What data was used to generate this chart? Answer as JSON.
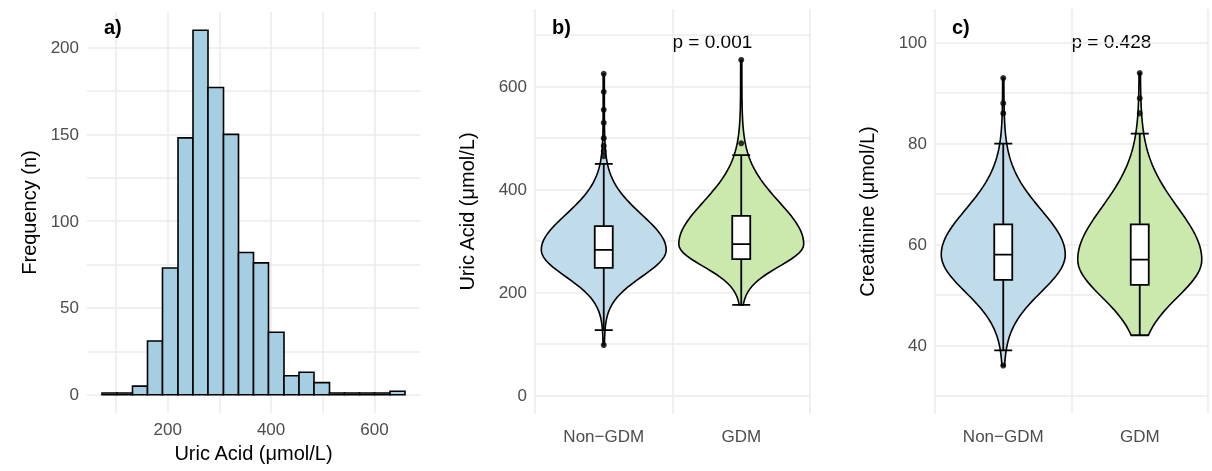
{
  "chart_data": [
    {
      "type": "histogram",
      "title": "a)",
      "xlabel": "Uric Acid (μmol/L)",
      "ylabel": "Frequency (n)",
      "color": "#a6cee3",
      "bins": [
        73,
        102,
        132,
        161,
        190,
        220,
        249,
        278,
        308,
        337,
        366,
        395,
        425,
        454,
        483,
        513,
        542,
        571,
        600,
        630,
        659
      ],
      "values": [
        1,
        1,
        5,
        31,
        73,
        148,
        210,
        177,
        150,
        82,
        76,
        36,
        11,
        13,
        7,
        1,
        1,
        1,
        1,
        2
      ],
      "xlim": [
        44,
        688
      ],
      "xticks": [
        {
          "value": 100,
          "label": null
        },
        200,
        {
          "value": 300,
          "label": null
        },
        400,
        {
          "value": 500,
          "label": null
        },
        600
      ],
      "ylim": [
        -10.5,
        220.5
      ],
      "yticks": [
        0,
        {
          "value": 25,
          "label": null
        },
        50,
        {
          "value": 75,
          "label": null
        },
        100,
        {
          "value": 125,
          "label": null
        },
        150,
        {
          "value": 175,
          "label": null
        },
        200
      ],
      "grid": true
    },
    {
      "type": "box",
      "title": "b)",
      "ylabel": "Uric Acid (μmol/L)",
      "categories": [
        "Non−GDM",
        "GDM"
      ],
      "marker": "circle",
      "boxes": [
        {
          "low": 127,
          "q1": 248,
          "median": 283,
          "q3": 329,
          "high": 450,
          "outliers": [
            98,
            465,
            475,
            485,
            500,
            530,
            555,
            590,
            625
          ]
        },
        {
          "low": 176,
          "q1": 265,
          "median": 294,
          "q3": 349,
          "high": 467,
          "outliers": [
            490,
            652
          ]
        }
      ],
      "annotations": [
        "p = 0.001"
      ],
      "ylim": [
        -36,
        751
      ],
      "yticks": [
        0,
        {
          "value": 100,
          "label": null
        },
        200,
        {
          "value": 300,
          "label": null
        },
        400,
        {
          "value": 500,
          "label": null
        },
        600,
        {
          "value": 700,
          "label": null
        }
      ],
      "grid": true
    },
    {
      "type": "box",
      "title": "c)",
      "ylabel": "Creatinine (μmol/L)",
      "categories": [
        "Non−GDM",
        "GDM"
      ],
      "marker": "circle",
      "boxes": [
        {
          "low": 39,
          "q1": 53,
          "median": 58,
          "q3": 64,
          "high": 80,
          "outliers": [
            36,
            86,
            88,
            93
          ]
        },
        {
          "low": 42,
          "q1": 52,
          "median": 57,
          "q3": 64,
          "high": 82,
          "outliers": [
            86,
            89,
            94
          ]
        }
      ],
      "annotations": [
        "p = 0.428"
      ],
      "ylim": [
        26.4,
        106.7
      ],
      "yticks": [
        {
          "value": 30,
          "label": null
        },
        40,
        {
          "value": 50,
          "label": null
        },
        60,
        {
          "value": 70,
          "label": null
        },
        80,
        {
          "value": 90,
          "label": null
        },
        100
      ],
      "grid": true
    }
  ]
}
